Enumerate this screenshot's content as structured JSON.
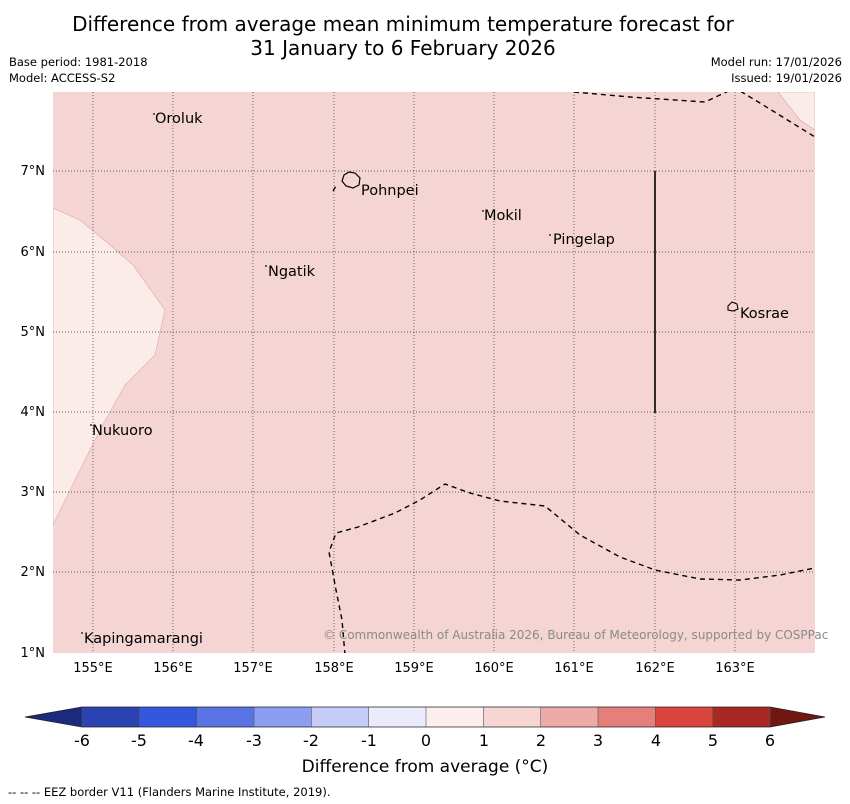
{
  "title": {
    "line1": "Difference from average mean minimum temperature forecast for",
    "line2": "31 January to 6 February 2026"
  },
  "metadata": {
    "base_period": "Base period: 1981-2018",
    "model": "Model: ACCESS-S2",
    "model_run": "Model run: 17/01/2026",
    "issued": "Issued: 19/01/2026"
  },
  "map": {
    "lat_labels": [
      "7°N",
      "6°N",
      "5°N",
      "4°N",
      "3°N",
      "2°N",
      "1°N"
    ],
    "lon_labels": [
      "155°E",
      "156°E",
      "157°E",
      "158°E",
      "159°E",
      "160°E",
      "161°E",
      "162°E",
      "163°E"
    ],
    "places": [
      "Oroluk",
      "Pohnpei",
      "Mokil",
      "Pingelap",
      "Ngatik",
      "Kosrae",
      "Nukuoro",
      "Kapingamarangi"
    ],
    "copyright": "© Commonwealth of Australia 2026, Bureau of Meteorology, supported by COSPPac",
    "colors": {
      "bin_1_2": "#f5d5d3",
      "bin_0_1": "#fbebe9"
    }
  },
  "colorbar": {
    "ticks": [
      "-6",
      "-5",
      "-4",
      "-3",
      "-2",
      "-1",
      "0",
      "1",
      "2",
      "3",
      "4",
      "5",
      "6"
    ],
    "colors": [
      "#1a2a7c",
      "#2a42b2",
      "#3556de",
      "#5a74e6",
      "#8c9ef0",
      "#c4cbf7",
      "#eaecfc",
      "#fdeeee",
      "#f6d5d3",
      "#eeaaa7",
      "#e67f79",
      "#d9453d",
      "#a82824",
      "#701810"
    ],
    "label": "Difference from average (°C)"
  },
  "footnote": "--  --  -- EEZ border V11 (Flanders Marine Institute, 2019)."
}
